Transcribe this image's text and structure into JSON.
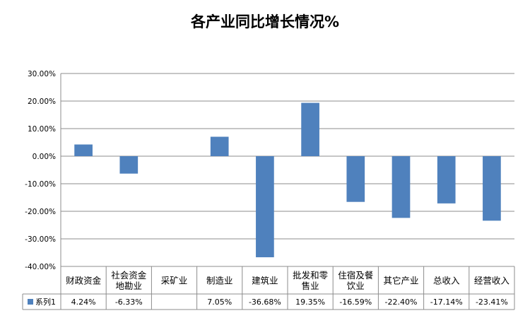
{
  "chart_data": {
    "type": "bar",
    "title": "各产业同比增长情况%",
    "categories": [
      "财政资金",
      "社会资金\n地勘业",
      "采矿业",
      "制造业",
      "建筑业",
      "批发和零\n售业",
      "住宿及餐\n饮业",
      "其它产业",
      "总收入",
      "经营收入"
    ],
    "series": [
      {
        "name": "系列1",
        "values": [
          4.24,
          -6.33,
          null,
          7.05,
          -36.68,
          19.35,
          -16.59,
          -22.4,
          -17.14,
          -23.41
        ],
        "labels": [
          "4.24%",
          "-6.33%",
          "",
          "7.05%",
          "-36.68%",
          "19.35%",
          "-16.59%",
          "-22.40%",
          "-17.14%",
          "-23.41%"
        ],
        "color": "#4f81bd"
      }
    ],
    "ylim": [
      -40,
      30
    ],
    "yticks": [
      30,
      20,
      10,
      0,
      -10,
      -20,
      -30,
      -40
    ],
    "ytick_labels": [
      "30.00%",
      "20.00%",
      "10.00%",
      "0.00%",
      "-10.00%",
      "-20.00%",
      "-30.00%",
      "-40.00%"
    ],
    "grid": true,
    "data_table": true
  }
}
